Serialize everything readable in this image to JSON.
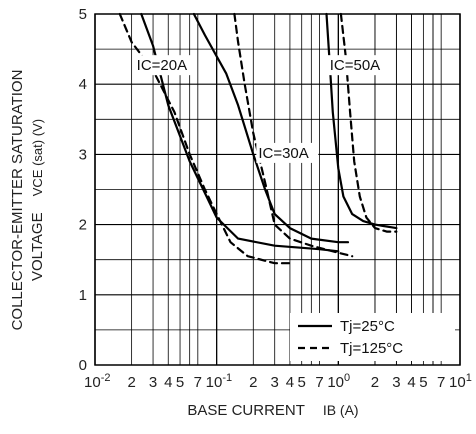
{
  "chart_data": {
    "type": "line",
    "x_scale": "log",
    "xlim": [
      0.01,
      10
    ],
    "ylim": [
      0,
      5
    ],
    "grid": true,
    "xlabel": {
      "main": "BASE CURRENT",
      "symbol": "IB (A)"
    },
    "ylabel": {
      "line1": "COLLECTOR-EMITTER SATURATION",
      "line2_main": "VOLTAGE",
      "line2_symbol": "VCE (sat) (V)"
    },
    "x_ticks": [
      {
        "value": 0.01,
        "label": "10⁻²"
      },
      {
        "value": 0.02,
        "label": "2"
      },
      {
        "value": 0.03,
        "label": "3"
      },
      {
        "value": 0.04,
        "label": "4"
      },
      {
        "value": 0.05,
        "label": "5"
      },
      {
        "value": 0.07,
        "label": "7"
      },
      {
        "value": 0.1,
        "label": "10⁻¹"
      },
      {
        "value": 0.2,
        "label": "2"
      },
      {
        "value": 0.3,
        "label": "3"
      },
      {
        "value": 0.4,
        "label": "4"
      },
      {
        "value": 0.5,
        "label": "5"
      },
      {
        "value": 0.7,
        "label": "7"
      },
      {
        "value": 1,
        "label": "10⁰"
      },
      {
        "value": 2,
        "label": "2"
      },
      {
        "value": 3,
        "label": "3"
      },
      {
        "value": 4,
        "label": "4"
      },
      {
        "value": 5,
        "label": "5"
      },
      {
        "value": 7,
        "label": "7"
      },
      {
        "value": 10,
        "label": "10¹"
      }
    ],
    "y_ticks": [
      {
        "value": 0,
        "label": "0"
      },
      {
        "value": 1,
        "label": "1"
      },
      {
        "value": 2,
        "label": "2"
      },
      {
        "value": 3,
        "label": "3"
      },
      {
        "value": 4,
        "label": "4"
      },
      {
        "value": 5,
        "label": "5"
      }
    ],
    "legend": {
      "placement": "bottom-right",
      "entries": [
        {
          "style": "solid",
          "label": "Tj=25°C"
        },
        {
          "style": "dashed",
          "label": "Tj=125°C"
        }
      ]
    },
    "series": [
      {
        "name": "IC=20A",
        "temp": "Tj=25°C",
        "style": "solid",
        "x": [
          0.024,
          0.03,
          0.04,
          0.06,
          0.08,
          0.1,
          0.15,
          0.3,
          0.7,
          1.0
        ],
        "y": [
          5.0,
          4.55,
          3.7,
          2.9,
          2.45,
          2.1,
          1.8,
          1.7,
          1.65,
          1.62
        ]
      },
      {
        "name": "IC=20A",
        "temp": "Tj=125°C",
        "style": "dashed",
        "x": [
          0.016,
          0.02,
          0.03,
          0.045,
          0.06,
          0.08,
          0.1,
          0.13,
          0.18,
          0.3,
          0.4
        ],
        "y": [
          5.0,
          4.6,
          4.2,
          3.6,
          3.0,
          2.5,
          2.15,
          1.75,
          1.55,
          1.45,
          1.45
        ]
      },
      {
        "name": "IC=30A",
        "temp": "Tj=25°C",
        "style": "solid",
        "x": [
          0.065,
          0.08,
          0.12,
          0.15,
          0.2,
          0.25,
          0.3,
          0.4,
          0.6,
          1.0,
          1.2
        ],
        "y": [
          5.0,
          4.7,
          4.15,
          3.7,
          3.0,
          2.5,
          2.15,
          1.95,
          1.8,
          1.75,
          1.75
        ]
      },
      {
        "name": "IC=30A",
        "temp": "Tj=125°C",
        "style": "dashed",
        "x": [
          0.14,
          0.15,
          0.17,
          0.2,
          0.25,
          0.3,
          0.4,
          0.6,
          1.0,
          1.3
        ],
        "y": [
          5.0,
          4.6,
          4.0,
          3.3,
          2.6,
          2.0,
          1.8,
          1.7,
          1.6,
          1.55
        ]
      },
      {
        "name": "IC=50A",
        "temp": "Tj=25°C",
        "style": "solid",
        "x": [
          0.8,
          0.85,
          0.9,
          1.0,
          1.1,
          1.3,
          1.6,
          2.0,
          3.0
        ],
        "y": [
          5.0,
          4.3,
          3.6,
          2.8,
          2.4,
          2.15,
          2.05,
          2.0,
          1.95
        ]
      },
      {
        "name": "IC=50A",
        "temp": "Tj=125°C",
        "style": "dashed",
        "x": [
          1.05,
          1.15,
          1.25,
          1.35,
          1.5,
          1.7,
          2.0,
          2.5,
          3.0
        ],
        "y": [
          5.0,
          4.4,
          3.6,
          2.9,
          2.4,
          2.1,
          1.95,
          1.9,
          1.9
        ]
      }
    ],
    "annotations": [
      {
        "text": "IC=20A",
        "x": 0.022,
        "y": 4.2
      },
      {
        "text": "IC=30A",
        "x": 0.22,
        "y": 2.95
      },
      {
        "text": "IC=50A",
        "x": 0.85,
        "y": 4.2
      }
    ]
  }
}
